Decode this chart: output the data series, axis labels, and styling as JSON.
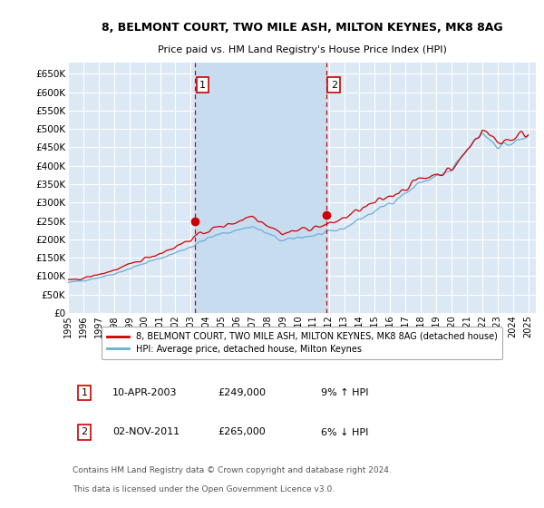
{
  "title_line1": "8, BELMONT COURT, TWO MILE ASH, MILTON KEYNES, MK8 8AG",
  "title_line2": "Price paid vs. HM Land Registry's House Price Index (HPI)",
  "ylabel_ticks": [
    "£0",
    "£50K",
    "£100K",
    "£150K",
    "£200K",
    "£250K",
    "£300K",
    "£350K",
    "£400K",
    "£450K",
    "£500K",
    "£550K",
    "£600K",
    "£650K"
  ],
  "ytick_values": [
    0,
    50000,
    100000,
    150000,
    200000,
    250000,
    300000,
    350000,
    400000,
    450000,
    500000,
    550000,
    600000,
    650000
  ],
  "ylim": [
    0,
    680000
  ],
  "xlim_start": 1995.0,
  "xlim_end": 2025.5,
  "background_color": "#dce9f5",
  "grid_color": "#ffffff",
  "shade_color": "#c8dcf0",
  "sale1_x": 2003.27,
  "sale1_y": 249000,
  "sale1_label": "1",
  "sale1_date": "10-APR-2003",
  "sale1_price": "£249,000",
  "sale1_hpi": "9% ↑ HPI",
  "sale2_x": 2011.83,
  "sale2_y": 265000,
  "sale2_label": "2",
  "sale2_date": "02-NOV-2011",
  "sale2_price": "£265,000",
  "sale2_hpi": "6% ↓ HPI",
  "hpi_color": "#6aaed6",
  "price_color": "#cc0000",
  "vline_color": "#cc0000",
  "legend_label1": "8, BELMONT COURT, TWO MILE ASH, MILTON KEYNES, MK8 8AG (detached house)",
  "legend_label2": "HPI: Average price, detached house, Milton Keynes",
  "footer1": "Contains HM Land Registry data © Crown copyright and database right 2024.",
  "footer2": "This data is licensed under the Open Government Licence v3.0.",
  "xtick_years": [
    1995,
    1996,
    1997,
    1998,
    1999,
    2000,
    2001,
    2002,
    2003,
    2004,
    2005,
    2006,
    2007,
    2008,
    2009,
    2010,
    2011,
    2012,
    2013,
    2014,
    2015,
    2016,
    2017,
    2018,
    2019,
    2020,
    2021,
    2022,
    2023,
    2024,
    2025
  ]
}
